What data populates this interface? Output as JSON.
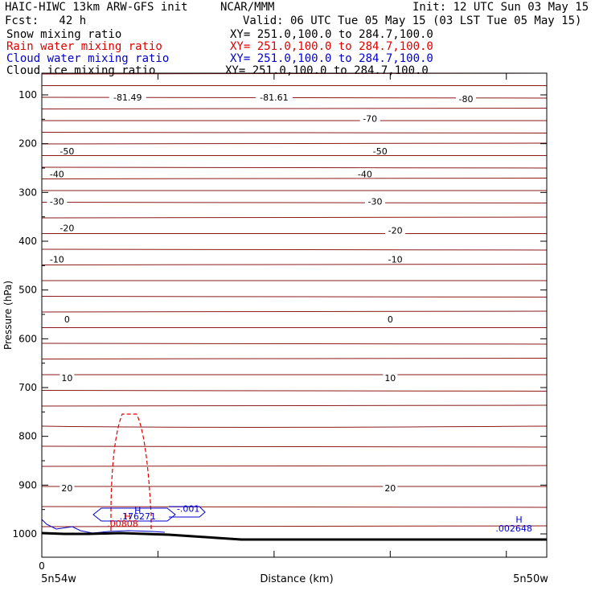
{
  "header": {
    "title": "HAIC-HIWC 13km ARW-GFS init",
    "org": "NCAR/MMM",
    "init": "Init: 12 UTC Sun 03 May 15",
    "fcst": "Fcst:   42 h",
    "valid": "Valid: 06 UTC Tue 05 May 15 (03 LST Tue 05 May 15)"
  },
  "fields": [
    {
      "name": "Snow mixing ratio",
      "xy": "XY= 251.0,100.0 to 284.7,100.0",
      "color": "#000000"
    },
    {
      "name": "Rain water mixing ratio",
      "xy": "XY= 251.0,100.0 to 284.7,100.0",
      "color": "#e00000"
    },
    {
      "name": "Cloud water mixing ratio",
      "xy": "XY= 251.0,100.0 to 284.7,100.0",
      "color": "#0000d0"
    },
    {
      "name": "Cloud ice mixing ratio",
      "xy": "XY= 251.0,100.0 to 284.7,100.0",
      "color": "#000000"
    }
  ],
  "colors": {
    "temperature": "#8b1a1a",
    "rain": "#e00000",
    "cloud_water": "#0000d0",
    "terrain": "#000000"
  },
  "chart_data": {
    "type": "line",
    "title": "",
    "xlabel": "Distance (km)",
    "ylabel": "Pressure (hPa)",
    "x_tick_start": "0",
    "x_left_label": "5n54w",
    "x_right_label": "5n50w",
    "yticks": [
      100,
      200,
      300,
      400,
      500,
      600,
      700,
      800,
      900,
      1000
    ],
    "ylim": [
      1050,
      80
    ],
    "temperature_labels": [
      {
        "text": "-81.49",
        "p": 105,
        "x": 0.17
      },
      {
        "text": "-81.61",
        "p": 105,
        "x": 0.46
      },
      {
        "text": "-80",
        "p": 108,
        "x": 0.84
      },
      {
        "text": "-70",
        "p": 149,
        "x": 0.65
      },
      {
        "text": "-50",
        "p": 215,
        "x": 0.05
      },
      {
        "text": "-50",
        "p": 215,
        "x": 0.67
      },
      {
        "text": "-40",
        "p": 262,
        "x": 0.03
      },
      {
        "text": "-40",
        "p": 262,
        "x": 0.64
      },
      {
        "text": "-30",
        "p": 318,
        "x": 0.03
      },
      {
        "text": "-30",
        "p": 318,
        "x": 0.66
      },
      {
        "text": "-20",
        "p": 373,
        "x": 0.05
      },
      {
        "text": "-20",
        "p": 378,
        "x": 0.7
      },
      {
        "text": "-10",
        "p": 437,
        "x": 0.03
      },
      {
        "text": "-10",
        "p": 437,
        "x": 0.7
      },
      {
        "text": "0",
        "p": 560,
        "x": 0.05
      },
      {
        "text": "0",
        "p": 560,
        "x": 0.69
      },
      {
        "text": "10",
        "p": 680,
        "x": 0.05
      },
      {
        "text": "10",
        "p": 680,
        "x": 0.69
      },
      {
        "text": "20",
        "p": 906,
        "x": 0.05
      },
      {
        "text": "20",
        "p": 906,
        "x": 0.69
      }
    ],
    "rain_annotations": [
      {
        "text": "H",
        "p": 970,
        "x": 0.17
      },
      {
        "text": ".00808",
        "p": 985,
        "x": 0.16
      }
    ],
    "cloud_annotations": [
      {
        "text": "H",
        "p": 958,
        "x": 0.19
      },
      {
        "text": ".176271",
        "p": 970,
        "x": 0.19
      },
      {
        "text": "-.001",
        "p": 955,
        "x": 0.29
      },
      {
        "text": "H",
        "p": 977,
        "x": 0.945
      },
      {
        "text": ".002648",
        "p": 995,
        "x": 0.935
      }
    ]
  }
}
